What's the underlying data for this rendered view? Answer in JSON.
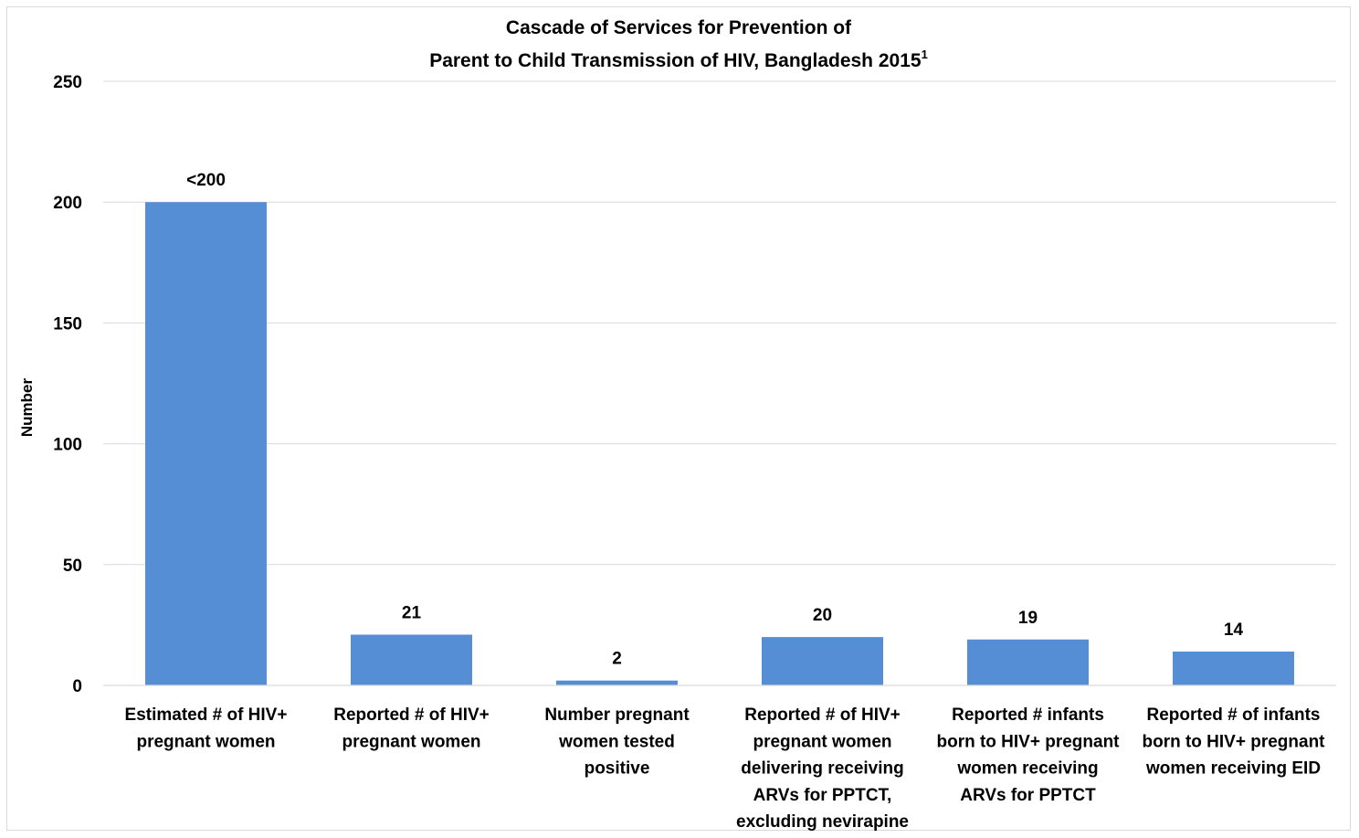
{
  "chart_data": {
    "type": "bar",
    "title_lines": [
      "Cascade of Services for Prevention of",
      "Parent to Child Transmission of HIV, Bangladesh 2015"
    ],
    "title_superscript": "1",
    "ylabel": "Number",
    "xlabel": "",
    "ylim": [
      0,
      250
    ],
    "y_ticks": [
      0,
      50,
      100,
      150,
      200,
      250
    ],
    "grid": true,
    "legend": "none",
    "bar_color": "#558ed5",
    "gridline_color": "#d9d9d9",
    "categories": [
      [
        "Estimated # of HIV+",
        "pregnant women"
      ],
      [
        "Reported # of HIV+",
        "pregnant women"
      ],
      [
        "Number pregnant",
        "women tested",
        "positive"
      ],
      [
        "Reported # of HIV+",
        "pregnant women",
        "delivering receiving",
        "ARVs for PPTCT,",
        "excluding nevirapine"
      ],
      [
        "Reported # infants",
        "born to HIV+ pregnant",
        "women receiving",
        "ARVs for PPTCT"
      ],
      [
        "Reported # of infants",
        "born to HIV+ pregnant",
        "women receiving EID"
      ]
    ],
    "values": [
      200,
      21,
      2,
      20,
      19,
      14
    ],
    "data_labels": [
      "<200",
      "21",
      "2",
      "20",
      "19",
      "14"
    ]
  }
}
